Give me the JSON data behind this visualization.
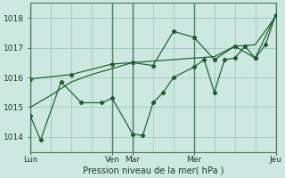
{
  "bg_color": "#cce8e0",
  "grid_color": "#a8ccc4",
  "line_color": "#1a5c2a",
  "marker_color": "#1a5c2a",
  "xlabel": "Pression niveau de la mer( hPa )",
  "ylim": [
    1013.5,
    1018.5
  ],
  "yticks": [
    1014,
    1015,
    1016,
    1017,
    1018
  ],
  "xtick_labels": [
    "Lun",
    "Ven",
    "Mar",
    "Mer",
    "Jeu"
  ],
  "xtick_positions": [
    0,
    8,
    10,
    16,
    24
  ],
  "vlines_dark": [
    0,
    8,
    10,
    16,
    24
  ],
  "vlines_light": [
    2,
    4,
    6,
    12,
    14,
    18,
    20,
    22
  ],
  "xlim": [
    0,
    24
  ],
  "series1_x": [
    0,
    1,
    3,
    5,
    7,
    8,
    10,
    11,
    12,
    13,
    14,
    16,
    17,
    18,
    19,
    20,
    21,
    22,
    23,
    24
  ],
  "series1_y": [
    1014.7,
    1013.9,
    1015.85,
    1015.15,
    1015.15,
    1015.3,
    1014.1,
    1014.05,
    1015.15,
    1015.5,
    1016.0,
    1016.35,
    1016.6,
    1015.5,
    1016.6,
    1016.65,
    1017.05,
    1016.65,
    1017.1,
    1018.1
  ],
  "series2_x": [
    0,
    2,
    4,
    6,
    8,
    10,
    12,
    14,
    16,
    18,
    20,
    22,
    24
  ],
  "series2_y": [
    1015.0,
    1015.4,
    1015.85,
    1016.1,
    1016.3,
    1016.5,
    1016.55,
    1016.6,
    1016.65,
    1016.7,
    1017.05,
    1017.1,
    1018.05
  ],
  "series3_x": [
    0,
    4,
    8,
    10,
    12,
    14,
    16,
    18,
    20,
    22,
    24
  ],
  "series3_y": [
    1015.95,
    1016.1,
    1016.45,
    1016.5,
    1016.4,
    1017.55,
    1017.35,
    1016.6,
    1017.05,
    1016.65,
    1018.1
  ]
}
